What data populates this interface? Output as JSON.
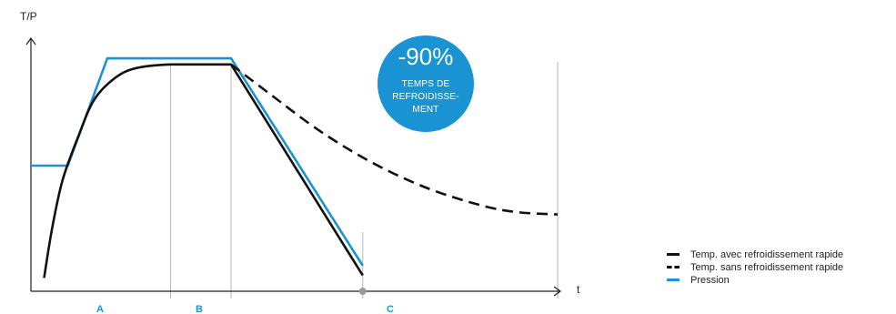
{
  "chart_data": {
    "type": "line",
    "y_axis_label": "T/P",
    "x_axis_label": "t",
    "phases": [
      "A",
      "B",
      "C"
    ],
    "badge": {
      "value": "-90%",
      "caption_lines": [
        "TEMPS DE",
        "REFROIDISSE-",
        "MENT"
      ]
    },
    "x_range": [
      0,
      100
    ],
    "y_range": [
      0,
      100
    ],
    "vlines": [
      26.5,
      38,
      63,
      100
    ],
    "series": [
      {
        "name": "Temp. avec refroidissement rapide",
        "style": "solid",
        "color": "#111111",
        "points": [
          [
            2.5,
            4
          ],
          [
            4,
            24
          ],
          [
            6,
            44
          ],
          [
            9,
            62
          ],
          [
            12,
            77
          ],
          [
            16,
            86
          ],
          [
            20,
            90
          ],
          [
            26.5,
            91.5
          ],
          [
            38,
            91.5
          ],
          [
            63,
            5
          ]
        ]
      },
      {
        "name": "Temp. sans refroidissement rapide",
        "style": "dashed",
        "color": "#111111",
        "points": [
          [
            38,
            91.5
          ],
          [
            45,
            80
          ],
          [
            55,
            64
          ],
          [
            65,
            51
          ],
          [
            75,
            41
          ],
          [
            85,
            34
          ],
          [
            92,
            31
          ],
          [
            100,
            30
          ]
        ]
      },
      {
        "name": "Pression",
        "style": "solid",
        "color": "#1a93d2",
        "points": [
          [
            0,
            50
          ],
          [
            7,
            50
          ],
          [
            14.5,
            94
          ],
          [
            38,
            94
          ],
          [
            63,
            9
          ]
        ]
      }
    ]
  },
  "colors": {
    "accent": "#1a93d2",
    "line": "#111111",
    "grid": "#b5b5b5"
  }
}
